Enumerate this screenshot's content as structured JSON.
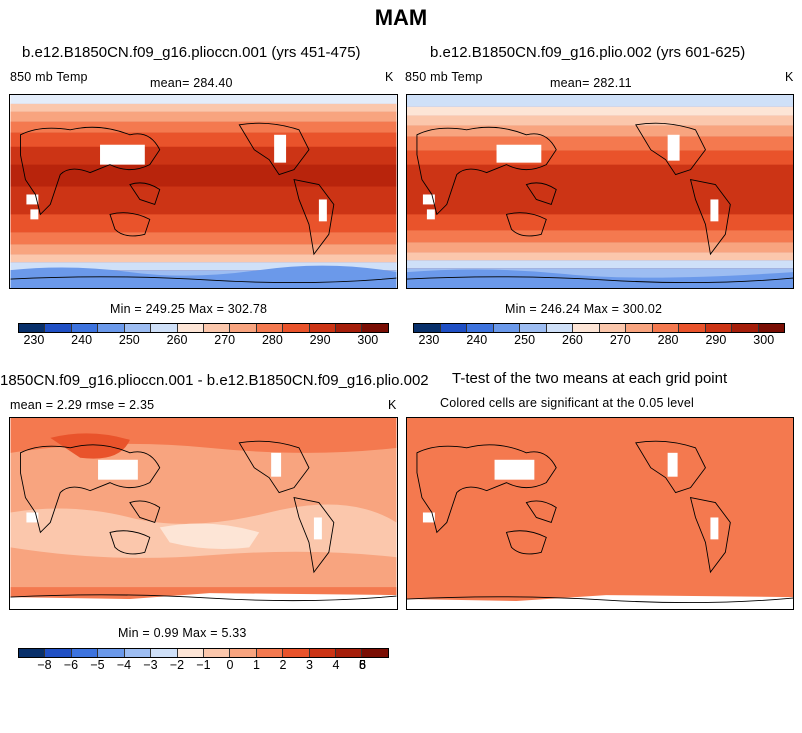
{
  "title": "MAM",
  "panels": [
    {
      "title": "b.e12.B1850CN.f09_g16.plioccn.001 (yrs 451-475)",
      "variable": "850 mb Temp",
      "stat": "mean=  284.40",
      "units": "K",
      "minmax": "Min = 249.25  Max = 302.78"
    },
    {
      "title": "b.e12.B1850CN.f09_g16.plio.002 (yrs 601-625)",
      "variable": "850 mb Temp",
      "stat": "mean=  282.11",
      "units": "K",
      "minmax": "Min = 246.24  Max = 300.02"
    },
    {
      "title": "1850CN.f09_g16.plioccn.001 - b.e12.B1850CN.f09_g16.plio.002",
      "stat": "mean =    2.29      rmse =    2.35",
      "units": "K",
      "minmax": "Min =    0.99  Max =    5.33"
    },
    {
      "title": "T-test of the two means at each grid point",
      "subtitle": "Colored cells are significant at the 0.05 level"
    }
  ],
  "colorbar_abs": {
    "colors": [
      "#08306b",
      "#1f4fc4",
      "#3d73de",
      "#6b99ea",
      "#9dbdf2",
      "#cfe0f8",
      "#fde5d6",
      "#fbc7ac",
      "#f8a47f",
      "#f4794f",
      "#e9532b",
      "#cc3415",
      "#a51e0a",
      "#7a0e04"
    ],
    "ticks": [
      "230",
      "240",
      "250",
      "260",
      "270",
      "280",
      "290",
      "300"
    ]
  },
  "colorbar_diff": {
    "colors": [
      "#08306b",
      "#1f4fc4",
      "#3d73de",
      "#6b99ea",
      "#9dbdf2",
      "#cfe0f8",
      "#fde5d6",
      "#fbc7ac",
      "#f8a47f",
      "#f4794f",
      "#e9532b",
      "#cc3415",
      "#a51e0a",
      "#7a0e04"
    ],
    "ticks": [
      "−8",
      "−6",
      "−5",
      "−4",
      "−3",
      "−2",
      "−1",
      "0",
      "1",
      "2",
      "3",
      "4",
      "5",
      "6",
      "8"
    ]
  }
}
